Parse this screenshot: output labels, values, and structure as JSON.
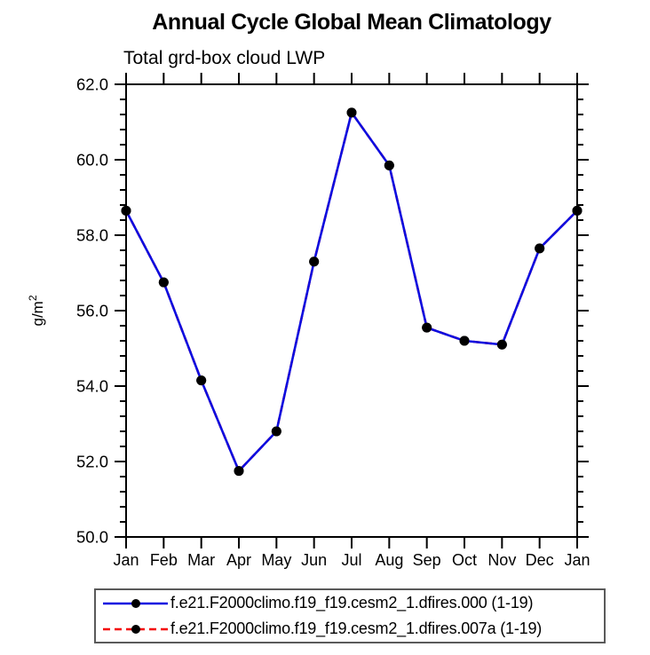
{
  "chart_data": {
    "type": "line",
    "title": "Annual Cycle Global Mean Climatology",
    "subtitle": "Total grd-box cloud LWP",
    "ylabel": "g/m²",
    "xlabel": "",
    "categories": [
      "Jan",
      "Feb",
      "Mar",
      "Apr",
      "May",
      "Jun",
      "Jul",
      "Aug",
      "Sep",
      "Oct",
      "Nov",
      "Dec",
      "Jan"
    ],
    "ylim": [
      50.0,
      62.0
    ],
    "y_major_step": 2.0,
    "y_minor_step": 0.4,
    "ytick_labels": [
      "50.0",
      "52.0",
      "54.0",
      "56.0",
      "58.0",
      "60.0",
      "62.0"
    ],
    "grid": false,
    "legend_position": "bottom-box",
    "axis_color": "#000000",
    "series": [
      {
        "name": "f.e21.F2000climo.f19_f19.cesm2_1.dfires.000 (1-19)",
        "color": "#0d0de0",
        "line_style": "solid",
        "marker": "filled-circle",
        "marker_color": "#000000",
        "values": [
          58.65,
          56.75,
          54.15,
          51.75,
          52.8,
          57.3,
          61.25,
          59.85,
          55.55,
          55.2,
          55.1,
          57.65,
          58.65
        ]
      },
      {
        "name": "f.e21.F2000climo.f19_f19.cesm2_1.dfires.007a (1-19)",
        "color": "#f40000",
        "line_style": "dashed",
        "marker": "filled-circle",
        "marker_color": "#000000",
        "values": [
          58.65,
          56.75,
          54.15,
          51.75,
          52.8,
          57.3,
          61.25,
          59.85,
          55.55,
          55.2,
          55.1,
          57.65,
          58.65
        ]
      }
    ]
  }
}
